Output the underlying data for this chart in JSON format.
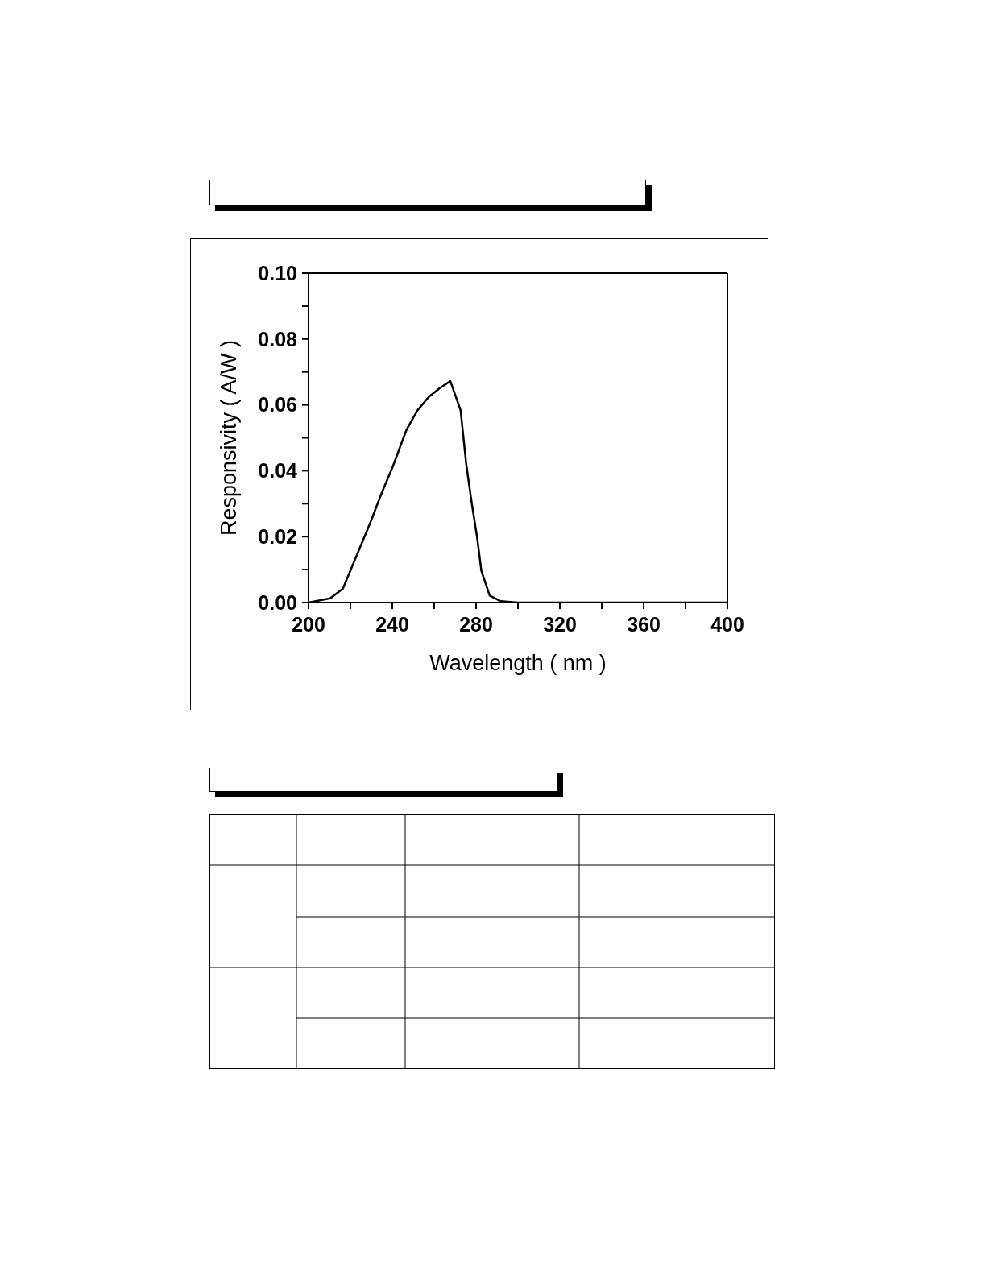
{
  "chart_data": {
    "type": "line",
    "xlabel": "Wavelength ( nm )",
    "ylabel": "Responsivity ( A/W )",
    "x": [
      200,
      210.4,
      216.4,
      223,
      229.6,
      234.9,
      240.2,
      246.8,
      252.1,
      257.4,
      262.7,
      267.7,
      272.6,
      275.3,
      277.9,
      280.6,
      282.5,
      286.5,
      291.8,
      299.7,
      400
    ],
    "series": [
      {
        "color": "#000000",
        "values": [
          0,
          0.0013,
          0.0042,
          0.0143,
          0.0244,
          0.0332,
          0.0412,
          0.0525,
          0.0584,
          0.0624,
          0.0651,
          0.0672,
          0.0584,
          0.042,
          0.0303,
          0.0193,
          0.0097,
          0.0021,
          0.0004,
          0,
          0
        ]
      }
    ],
    "xlim": [
      200,
      400
    ],
    "xticks": [
      200,
      {
        "value": 220,
        "label": null
      },
      240,
      {
        "value": 260,
        "label": null
      },
      280,
      {
        "value": 300,
        "label": null
      },
      320,
      {
        "value": 340,
        "label": null
      },
      360,
      {
        "value": 380,
        "label": null
      },
      400
    ],
    "ylim": [
      0,
      0.1
    ],
    "yticks": [
      {
        "value": 0,
        "label": "0.00"
      },
      {
        "value": 0.01,
        "label": null
      },
      {
        "value": 0.02,
        "label": "0.02"
      },
      {
        "value": 0.03,
        "label": null
      },
      {
        "value": 0.04,
        "label": "0.04"
      },
      {
        "value": 0.05,
        "label": null
      },
      {
        "value": 0.06,
        "label": "0.06"
      },
      {
        "value": 0.07,
        "label": null
      },
      {
        "value": 0.08,
        "label": "0.08"
      },
      {
        "value": 0.09,
        "label": null
      },
      {
        "value": 0.1,
        "label": "0.10"
      }
    ]
  }
}
